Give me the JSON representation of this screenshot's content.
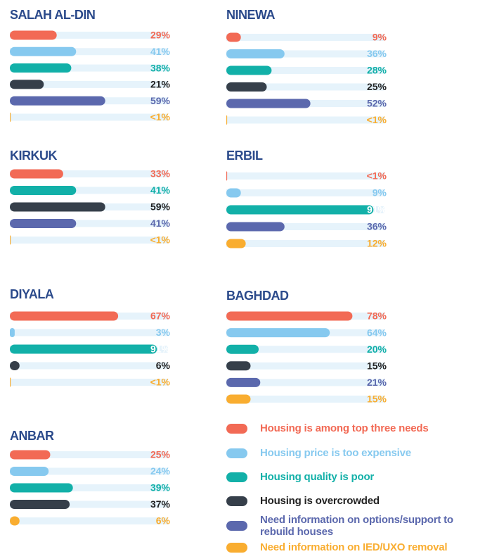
{
  "chart_data": [
    {
      "type": "bar",
      "title": "SALAH AL-DIN",
      "xlim": [
        0,
        100
      ],
      "values": [
        29,
        41,
        38,
        21,
        59,
        0.5
      ],
      "value_labels": [
        "29%",
        "41%",
        "38%",
        "21%",
        "59%",
        "<1%"
      ],
      "colors": [
        "#f26a55",
        "#86c9ef",
        "#12b0a8",
        "#363f4a",
        "#5b68ad",
        "#f9ad30"
      ]
    },
    {
      "type": "bar",
      "title": "NINEWA",
      "xlim": [
        0,
        100
      ],
      "values": [
        9,
        36,
        28,
        25,
        52,
        0.5
      ],
      "value_labels": [
        "9%",
        "36%",
        "28%",
        "25%",
        "52%",
        "<1%"
      ],
      "colors": [
        "#f26a55",
        "#86c9ef",
        "#12b0a8",
        "#363f4a",
        "#5b68ad",
        "#f9ad30"
      ]
    },
    {
      "type": "bar",
      "title": "KIRKUK",
      "xlim": [
        0,
        100
      ],
      "values": [
        33,
        41,
        59,
        41,
        0.5
      ],
      "value_labels": [
        "33%",
        "41%",
        "59%",
        "41%",
        "<1%"
      ],
      "colors": [
        "#f26a55",
        "#12b0a8",
        "#363f4a",
        "#5b68ad",
        "#f9ad30"
      ]
    },
    {
      "type": "bar",
      "title": "ERBIL",
      "xlim": [
        0,
        100
      ],
      "values": [
        0.5,
        9,
        91,
        36,
        12
      ],
      "value_labels": [
        "<1%",
        "9%",
        "91%",
        "36%",
        "12%"
      ],
      "colors": [
        "#f26a55",
        "#86c9ef",
        "#12b0a8",
        "#5b68ad",
        "#f9ad30"
      ]
    },
    {
      "type": "bar",
      "title": "DIYALA",
      "xlim": [
        0,
        100
      ],
      "values": [
        67,
        3,
        91,
        6,
        0.5
      ],
      "value_labels": [
        "67%",
        "3%",
        "91%",
        "6%",
        "<1%"
      ],
      "colors": [
        "#f26a55",
        "#86c9ef",
        "#12b0a8",
        "#363f4a",
        "#f9ad30"
      ]
    },
    {
      "type": "bar",
      "title": "BAGHDAD",
      "xlim": [
        0,
        100
      ],
      "values": [
        78,
        64,
        20,
        15,
        21,
        15
      ],
      "value_labels": [
        "78%",
        "64%",
        "20%",
        "15%",
        "21%",
        "15%"
      ],
      "colors": [
        "#f26a55",
        "#86c9ef",
        "#12b0a8",
        "#363f4a",
        "#5b68ad",
        "#f9ad30"
      ]
    },
    {
      "type": "bar",
      "title": "ANBAR",
      "xlim": [
        0,
        100
      ],
      "values": [
        25,
        24,
        39,
        37,
        6
      ],
      "value_labels": [
        "25%",
        "24%",
        "39%",
        "37%",
        "6%"
      ],
      "colors": [
        "#f26a55",
        "#86c9ef",
        "#12b0a8",
        "#363f4a",
        "#f9ad30"
      ]
    }
  ],
  "legend": [
    {
      "label": "Housing is among top three needs",
      "color": "#f26a55"
    },
    {
      "label": "Housing price is too expensive",
      "color": "#86c9ef"
    },
    {
      "label": "Housing quality is poor",
      "color": "#12b0a8"
    },
    {
      "label": "Housing is overcrowded",
      "color": "#363f4a"
    },
    {
      "label": "Need information on options/support to rebuild houses",
      "color": "#5b68ad"
    },
    {
      "label": "Need information on IED/UXO removal",
      "color": "#f9ad30"
    }
  ]
}
